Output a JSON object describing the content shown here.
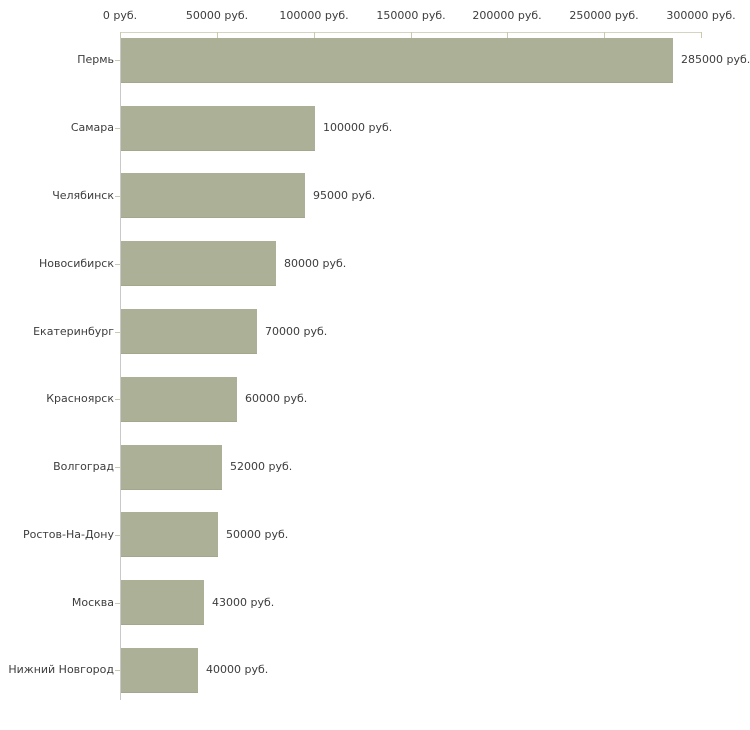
{
  "chart_data": {
    "type": "bar",
    "orientation": "horizontal",
    "title": "",
    "xlabel": "",
    "ylabel": "",
    "grid": false,
    "legend": false,
    "background_color": "#ffffff",
    "bar_color": "#abb096",
    "bar_border_color": "#a2a88b",
    "axis_line_color": "#d4d4c0",
    "left_axis_line_color": "#c9c9c9",
    "text_color": "#3d3d3d",
    "categories": [
      "Пермь",
      "Самара",
      "Челябинск",
      "Новосибирск",
      "Екатеринбург",
      "Красноярск",
      "Волгоград",
      "Ростов-На-Дону",
      "Москва",
      "Нижний Новгород"
    ],
    "values": [
      285000,
      100000,
      95000,
      80000,
      70000,
      60000,
      52000,
      50000,
      43000,
      40000
    ],
    "value_labels": [
      "285000 руб.",
      "100000 руб.",
      "95000 руб.",
      "80000 руб.",
      "70000 руб.",
      "60000 руб.",
      "52000 руб.",
      "50000 руб.",
      "43000 руб.",
      "40000 руб."
    ],
    "x_axis": {
      "position": "top",
      "xlim": [
        0,
        300000
      ],
      "ticks": [
        0,
        50000,
        100000,
        150000,
        200000,
        250000,
        300000
      ],
      "tick_labels": [
        "0 руб.",
        "50000 руб.",
        "100000 руб.",
        "150000 руб.",
        "200000 руб.",
        "250000 руб.",
        "300000 руб."
      ]
    }
  }
}
